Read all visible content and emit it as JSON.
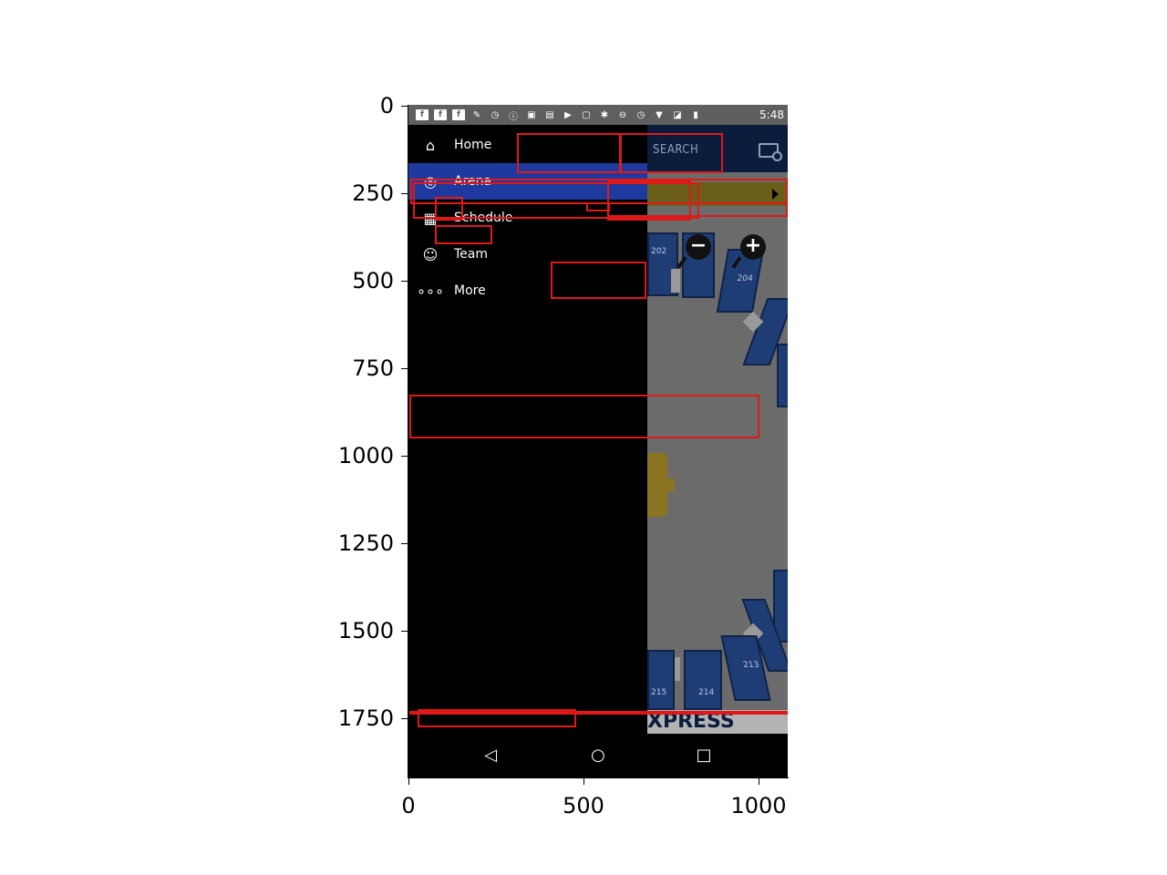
{
  "axes": {
    "yticks": [
      "0",
      "250",
      "500",
      "750",
      "1000",
      "1250",
      "1500",
      "1750"
    ],
    "xticks": [
      "0",
      "500",
      "1000"
    ]
  },
  "statusbar": {
    "icons": [
      "facebook-icon",
      "facebook-icon",
      "facebook-icon",
      "wrench-icon",
      "alarm-icon",
      "info-icon",
      "lock-icon",
      "clipboard-icon",
      "briefcase-icon",
      "android-icon",
      "bluetooth-icon",
      "minus-circle-icon",
      "alarm-icon",
      "wifi-icon",
      "no-signal-icon",
      "battery-icon"
    ],
    "time": "5:48"
  },
  "drawer": {
    "items": [
      {
        "label": "Home",
        "icon": "home-icon"
      },
      {
        "label": "Arena",
        "icon": "arena-icon"
      },
      {
        "label": "Schedule",
        "icon": "calendar-icon"
      },
      {
        "label": "Team",
        "icon": "team-icon"
      },
      {
        "label": "More",
        "icon": "more-icon"
      }
    ],
    "selected": "Arena"
  },
  "header": {
    "search_label": "SEARCH",
    "map_icon": "map-search-icon"
  },
  "map": {
    "sections": [
      "202",
      "204",
      "213",
      "214",
      "215"
    ],
    "zoom_out_label": "−",
    "zoom_in_label": "+",
    "express_text": "XPRESS"
  },
  "navbar": {
    "back": "◁",
    "home": "○",
    "recents": "□"
  },
  "colors": {
    "annotation": "#e01818",
    "drawer_selected": "#1f3a9e",
    "header": "#0c1c3c",
    "level_bar": "#6a5e1a",
    "section": "#1f3d75"
  }
}
